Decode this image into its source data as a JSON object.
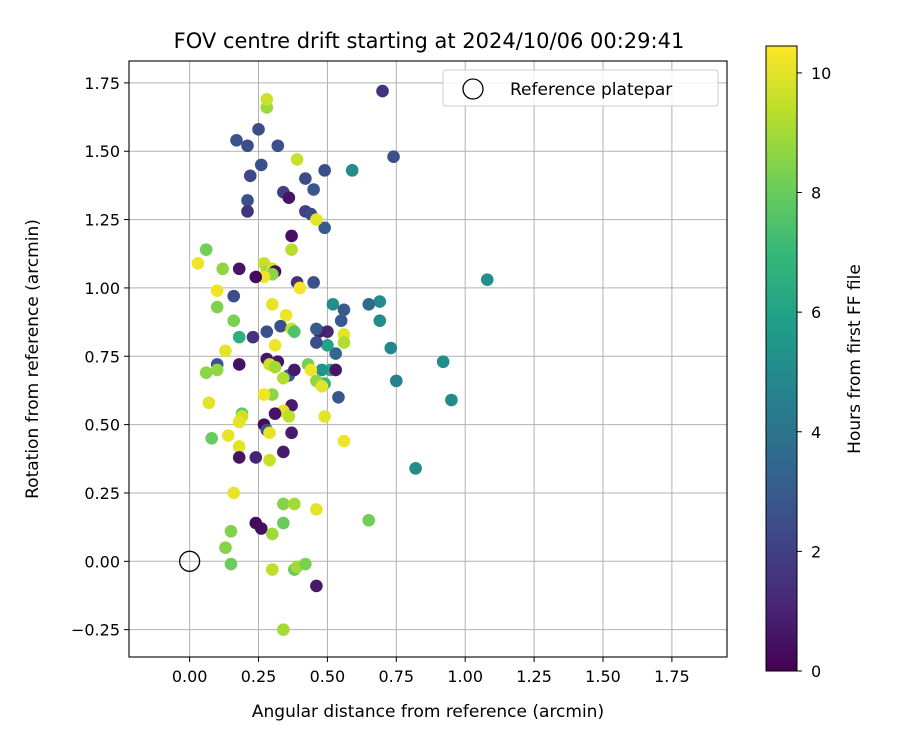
{
  "chart_data": {
    "type": "scatter",
    "title": "FOV centre drift starting at 2024/10/06 00:29:41",
    "xlabel": "Angular distance from reference (arcmin)",
    "ylabel": "Rotation from reference (arcmin)",
    "xlim": [
      -0.22,
      1.95
    ],
    "ylim": [
      -0.35,
      1.83
    ],
    "xticks": [
      0.0,
      0.25,
      0.5,
      0.75,
      1.0,
      1.25,
      1.5,
      1.75
    ],
    "xtick_labels": [
      "0.00",
      "0.25",
      "0.50",
      "0.75",
      "1.00",
      "1.25",
      "1.50",
      "1.75"
    ],
    "yticks": [
      -0.25,
      0.0,
      0.25,
      0.5,
      0.75,
      1.0,
      1.25,
      1.5,
      1.75
    ],
    "ytick_labels": [
      "−0.25",
      "0.00",
      "0.25",
      "0.50",
      "0.75",
      "1.00",
      "1.25",
      "1.50",
      "1.75"
    ],
    "grid": true,
    "legend": {
      "position": "top-right",
      "entries": [
        "Reference platepar"
      ]
    },
    "reference_point": {
      "x": 0.0,
      "y": 0.0
    },
    "colorbar": {
      "label": "Hours from first FF file",
      "min": 0,
      "max": 10.45,
      "ticks": [
        0,
        2,
        4,
        6,
        8,
        10
      ],
      "tick_labels": [
        "0",
        "2",
        "4",
        "6",
        "8",
        "10"
      ],
      "colormap": [
        "#440154",
        "#482878",
        "#3e4989",
        "#31688e",
        "#26828e",
        "#1f9e89",
        "#35b779",
        "#6ece58",
        "#b5de2b",
        "#fde725"
      ]
    },
    "points": [
      {
        "x": 0.7,
        "y": 1.72,
        "h": 1.5
      },
      {
        "x": 0.74,
        "y": 1.48,
        "h": 2.6
      },
      {
        "x": 0.59,
        "y": 1.43,
        "h": 5.0
      },
      {
        "x": 1.08,
        "y": 1.03,
        "h": 5.2
      },
      {
        "x": 0.92,
        "y": 0.73,
        "h": 5.1
      },
      {
        "x": 0.95,
        "y": 0.59,
        "h": 5.0
      },
      {
        "x": 0.82,
        "y": 0.34,
        "h": 5.0
      },
      {
        "x": 0.75,
        "y": 0.66,
        "h": 4.7
      },
      {
        "x": 0.73,
        "y": 0.78,
        "h": 4.8
      },
      {
        "x": 0.69,
        "y": 0.95,
        "h": 5.0
      },
      {
        "x": 0.69,
        "y": 0.88,
        "h": 5.0
      },
      {
        "x": 0.65,
        "y": 0.94,
        "h": 3.5
      },
      {
        "x": 0.65,
        "y": 0.15,
        "h": 8.2
      },
      {
        "x": 0.52,
        "y": 0.94,
        "h": 5.2
      },
      {
        "x": 0.56,
        "y": 0.92,
        "h": 3.0
      },
      {
        "x": 0.55,
        "y": 0.88,
        "h": 3.0
      },
      {
        "x": 0.53,
        "y": 0.76,
        "h": 3.5
      },
      {
        "x": 0.54,
        "y": 0.6,
        "h": 2.8
      },
      {
        "x": 0.5,
        "y": 0.79,
        "h": 6.0
      },
      {
        "x": 0.51,
        "y": 0.7,
        "h": 6.5
      },
      {
        "x": 0.53,
        "y": 0.7,
        "h": 0.6
      },
      {
        "x": 0.5,
        "y": 0.84,
        "h": 1.1
      },
      {
        "x": 0.47,
        "y": 0.84,
        "h": 0.9
      },
      {
        "x": 0.46,
        "y": 0.85,
        "h": 3.0
      },
      {
        "x": 0.46,
        "y": 0.8,
        "h": 2.5
      },
      {
        "x": 0.48,
        "y": 0.7,
        "h": 5.3
      },
      {
        "x": 0.49,
        "y": 0.65,
        "h": 7.0
      },
      {
        "x": 0.46,
        "y": 0.66,
        "h": 8.7
      },
      {
        "x": 0.48,
        "y": 0.64,
        "h": 10.0
      },
      {
        "x": 0.49,
        "y": 0.53,
        "h": 10.0
      },
      {
        "x": 0.56,
        "y": 0.83,
        "h": 10.0
      },
      {
        "x": 0.56,
        "y": 0.8,
        "h": 9.2
      },
      {
        "x": 0.56,
        "y": 0.44,
        "h": 10.2
      },
      {
        "x": 0.46,
        "y": 0.19,
        "h": 10.0
      },
      {
        "x": 0.46,
        "y": -0.09,
        "h": 0.7
      },
      {
        "x": 0.49,
        "y": 1.43,
        "h": 2.6
      },
      {
        "x": 0.49,
        "y": 1.22,
        "h": 3.0
      },
      {
        "x": 0.45,
        "y": 1.36,
        "h": 2.8
      },
      {
        "x": 0.42,
        "y": 1.4,
        "h": 2.4
      },
      {
        "x": 0.42,
        "y": 1.28,
        "h": 2.0
      },
      {
        "x": 0.44,
        "y": 1.27,
        "h": 2.3
      },
      {
        "x": 0.46,
        "y": 1.25,
        "h": 10.0
      },
      {
        "x": 0.45,
        "y": 1.02,
        "h": 2.6
      },
      {
        "x": 0.39,
        "y": 1.47,
        "h": 9.6
      },
      {
        "x": 0.34,
        "y": 1.35,
        "h": 2.0
      },
      {
        "x": 0.36,
        "y": 1.33,
        "h": 0.6
      },
      {
        "x": 0.37,
        "y": 1.19,
        "h": 0.4
      },
      {
        "x": 0.37,
        "y": 1.14,
        "h": 9.3
      },
      {
        "x": 0.39,
        "y": 1.02,
        "h": 1.4
      },
      {
        "x": 0.4,
        "y": 1.0,
        "h": 10.3
      },
      {
        "x": 0.32,
        "y": 1.52,
        "h": 2.6
      },
      {
        "x": 0.28,
        "y": 1.66,
        "h": 8.9
      },
      {
        "x": 0.28,
        "y": 1.69,
        "h": 9.7
      },
      {
        "x": 0.25,
        "y": 1.58,
        "h": 2.5
      },
      {
        "x": 0.17,
        "y": 1.54,
        "h": 2.7
      },
      {
        "x": 0.21,
        "y": 1.52,
        "h": 2.5
      },
      {
        "x": 0.26,
        "y": 1.45,
        "h": 2.6
      },
      {
        "x": 0.22,
        "y": 1.41,
        "h": 2.3
      },
      {
        "x": 0.21,
        "y": 1.32,
        "h": 2.6
      },
      {
        "x": 0.21,
        "y": 1.28,
        "h": 1.6
      },
      {
        "x": 0.27,
        "y": 1.09,
        "h": 9.6
      },
      {
        "x": 0.28,
        "y": 1.06,
        "h": 9.0
      },
      {
        "x": 0.3,
        "y": 1.07,
        "h": 9.7
      },
      {
        "x": 0.31,
        "y": 1.06,
        "h": 0.4
      },
      {
        "x": 0.3,
        "y": 1.05,
        "h": 8.6
      },
      {
        "x": 0.27,
        "y": 1.04,
        "h": 10.2
      },
      {
        "x": 0.24,
        "y": 1.04,
        "h": 0.3
      },
      {
        "x": 0.18,
        "y": 1.07,
        "h": 0.6
      },
      {
        "x": 0.12,
        "y": 1.07,
        "h": 8.7
      },
      {
        "x": 0.06,
        "y": 1.14,
        "h": 8.2
      },
      {
        "x": 0.03,
        "y": 1.09,
        "h": 10.2
      },
      {
        "x": 0.1,
        "y": 0.99,
        "h": 10.2
      },
      {
        "x": 0.16,
        "y": 0.97,
        "h": 2.5
      },
      {
        "x": 0.3,
        "y": 0.94,
        "h": 10.1
      },
      {
        "x": 0.1,
        "y": 0.93,
        "h": 8.4
      },
      {
        "x": 0.16,
        "y": 0.88,
        "h": 8.3
      },
      {
        "x": 0.35,
        "y": 0.9,
        "h": 10.2
      },
      {
        "x": 0.33,
        "y": 0.86,
        "h": 2.6
      },
      {
        "x": 0.37,
        "y": 0.85,
        "h": 9.6
      },
      {
        "x": 0.38,
        "y": 0.84,
        "h": 7.5
      },
      {
        "x": 0.28,
        "y": 0.84,
        "h": 2.6
      },
      {
        "x": 0.23,
        "y": 0.82,
        "h": 1.6
      },
      {
        "x": 0.18,
        "y": 0.82,
        "h": 6.6
      },
      {
        "x": 0.13,
        "y": 0.77,
        "h": 10.0
      },
      {
        "x": 0.31,
        "y": 0.79,
        "h": 10.2
      },
      {
        "x": 0.28,
        "y": 0.74,
        "h": 0.6
      },
      {
        "x": 0.32,
        "y": 0.73,
        "h": 0.6
      },
      {
        "x": 0.29,
        "y": 0.72,
        "h": 9.7
      },
      {
        "x": 0.31,
        "y": 0.71,
        "h": 9.0
      },
      {
        "x": 0.36,
        "y": 0.68,
        "h": 3.0
      },
      {
        "x": 0.38,
        "y": 0.7,
        "h": 0.7
      },
      {
        "x": 0.34,
        "y": 0.67,
        "h": 9.2
      },
      {
        "x": 0.18,
        "y": 0.72,
        "h": 0.5
      },
      {
        "x": 0.1,
        "y": 0.72,
        "h": 2.7
      },
      {
        "x": 0.1,
        "y": 0.7,
        "h": 8.7
      },
      {
        "x": 0.06,
        "y": 0.69,
        "h": 8.6
      },
      {
        "x": 0.43,
        "y": 0.72,
        "h": 8.2
      },
      {
        "x": 0.44,
        "y": 0.7,
        "h": 10.2
      },
      {
        "x": 0.3,
        "y": 0.61,
        "h": 8.6
      },
      {
        "x": 0.27,
        "y": 0.61,
        "h": 10.2
      },
      {
        "x": 0.37,
        "y": 0.57,
        "h": 0.8
      },
      {
        "x": 0.34,
        "y": 0.55,
        "h": 10.0
      },
      {
        "x": 0.31,
        "y": 0.54,
        "h": 0.5
      },
      {
        "x": 0.36,
        "y": 0.53,
        "h": 9.4
      },
      {
        "x": 0.19,
        "y": 0.54,
        "h": 7.8
      },
      {
        "x": 0.19,
        "y": 0.53,
        "h": 9.7
      },
      {
        "x": 0.18,
        "y": 0.51,
        "h": 10.0
      },
      {
        "x": 0.07,
        "y": 0.58,
        "h": 10.0
      },
      {
        "x": 0.27,
        "y": 0.5,
        "h": 0.3
      },
      {
        "x": 0.28,
        "y": 0.48,
        "h": 2.6
      },
      {
        "x": 0.37,
        "y": 0.47,
        "h": 0.8
      },
      {
        "x": 0.29,
        "y": 0.47,
        "h": 10.1
      },
      {
        "x": 0.14,
        "y": 0.46,
        "h": 10.1
      },
      {
        "x": 0.08,
        "y": 0.45,
        "h": 8.0
      },
      {
        "x": 0.18,
        "y": 0.42,
        "h": 10.0
      },
      {
        "x": 0.34,
        "y": 0.4,
        "h": 0.8
      },
      {
        "x": 0.18,
        "y": 0.38,
        "h": 0.5
      },
      {
        "x": 0.24,
        "y": 0.38,
        "h": 1.0
      },
      {
        "x": 0.29,
        "y": 0.37,
        "h": 9.6
      },
      {
        "x": 0.16,
        "y": 0.25,
        "h": 10.1
      },
      {
        "x": 0.34,
        "y": 0.21,
        "h": 8.5
      },
      {
        "x": 0.38,
        "y": 0.21,
        "h": 9.0
      },
      {
        "x": 0.24,
        "y": 0.14,
        "h": 0.3
      },
      {
        "x": 0.26,
        "y": 0.12,
        "h": 0.4
      },
      {
        "x": 0.34,
        "y": 0.14,
        "h": 8.0
      },
      {
        "x": 0.15,
        "y": 0.11,
        "h": 8.4
      },
      {
        "x": 0.3,
        "y": 0.1,
        "h": 8.9
      },
      {
        "x": 0.13,
        "y": 0.05,
        "h": 8.5
      },
      {
        "x": 0.15,
        "y": -0.01,
        "h": 8.0
      },
      {
        "x": 0.3,
        "y": -0.03,
        "h": 9.4
      },
      {
        "x": 0.38,
        "y": -0.03,
        "h": 8.0
      },
      {
        "x": 0.39,
        "y": -0.02,
        "h": 9.0
      },
      {
        "x": 0.42,
        "y": -0.01,
        "h": 8.3
      },
      {
        "x": 0.34,
        "y": -0.25,
        "h": 9.0
      }
    ]
  }
}
